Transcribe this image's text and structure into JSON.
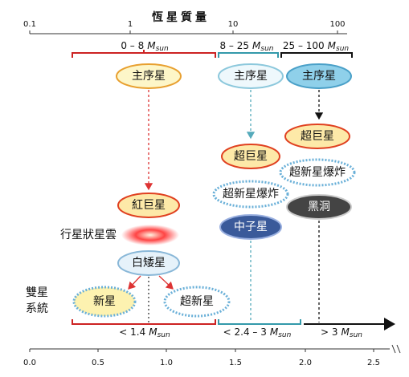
{
  "title": "恆星質量",
  "top_axis": {
    "ticks": [
      "0.1",
      "1",
      "10",
      "100"
    ]
  },
  "mass_ranges": [
    {
      "text": "0 – 8",
      "symbol": "M",
      "subscript": "sun"
    },
    {
      "text": "8 – 25",
      "symbol": "M",
      "subscript": "sun"
    },
    {
      "text": "25 – 100",
      "symbol": "M",
      "subscript": "sun"
    }
  ],
  "nodes": [
    {
      "label": "主序星"
    },
    {
      "label": "主序星"
    },
    {
      "label": "主序星"
    },
    {
      "label": "紅巨星"
    },
    {
      "label": "超巨星"
    },
    {
      "label": "超巨星"
    },
    {
      "label": "超新星爆炸"
    },
    {
      "label": "超新星爆炸"
    },
    {
      "label": "中子星"
    },
    {
      "label": "黑洞"
    },
    {
      "label": "行星狀星雲"
    },
    {
      "label": "白矮星"
    },
    {
      "label": "新星"
    },
    {
      "label": "超新星"
    }
  ],
  "binary_label": [
    "雙星",
    "系統"
  ],
  "remnant_ranges": [
    {
      "text": "< 1.4",
      "symbol": "M",
      "subscript": "sun"
    },
    {
      "text": "< 2.4 – 3",
      "symbol": "M",
      "subscript": "sun"
    },
    {
      "text": "> 3",
      "symbol": "M",
      "subscript": "sun"
    }
  ],
  "bottom_axis": {
    "ticks": [
      "0.0",
      "0.5",
      "1.0",
      "1.5",
      "2.0",
      "2.5"
    ]
  }
}
